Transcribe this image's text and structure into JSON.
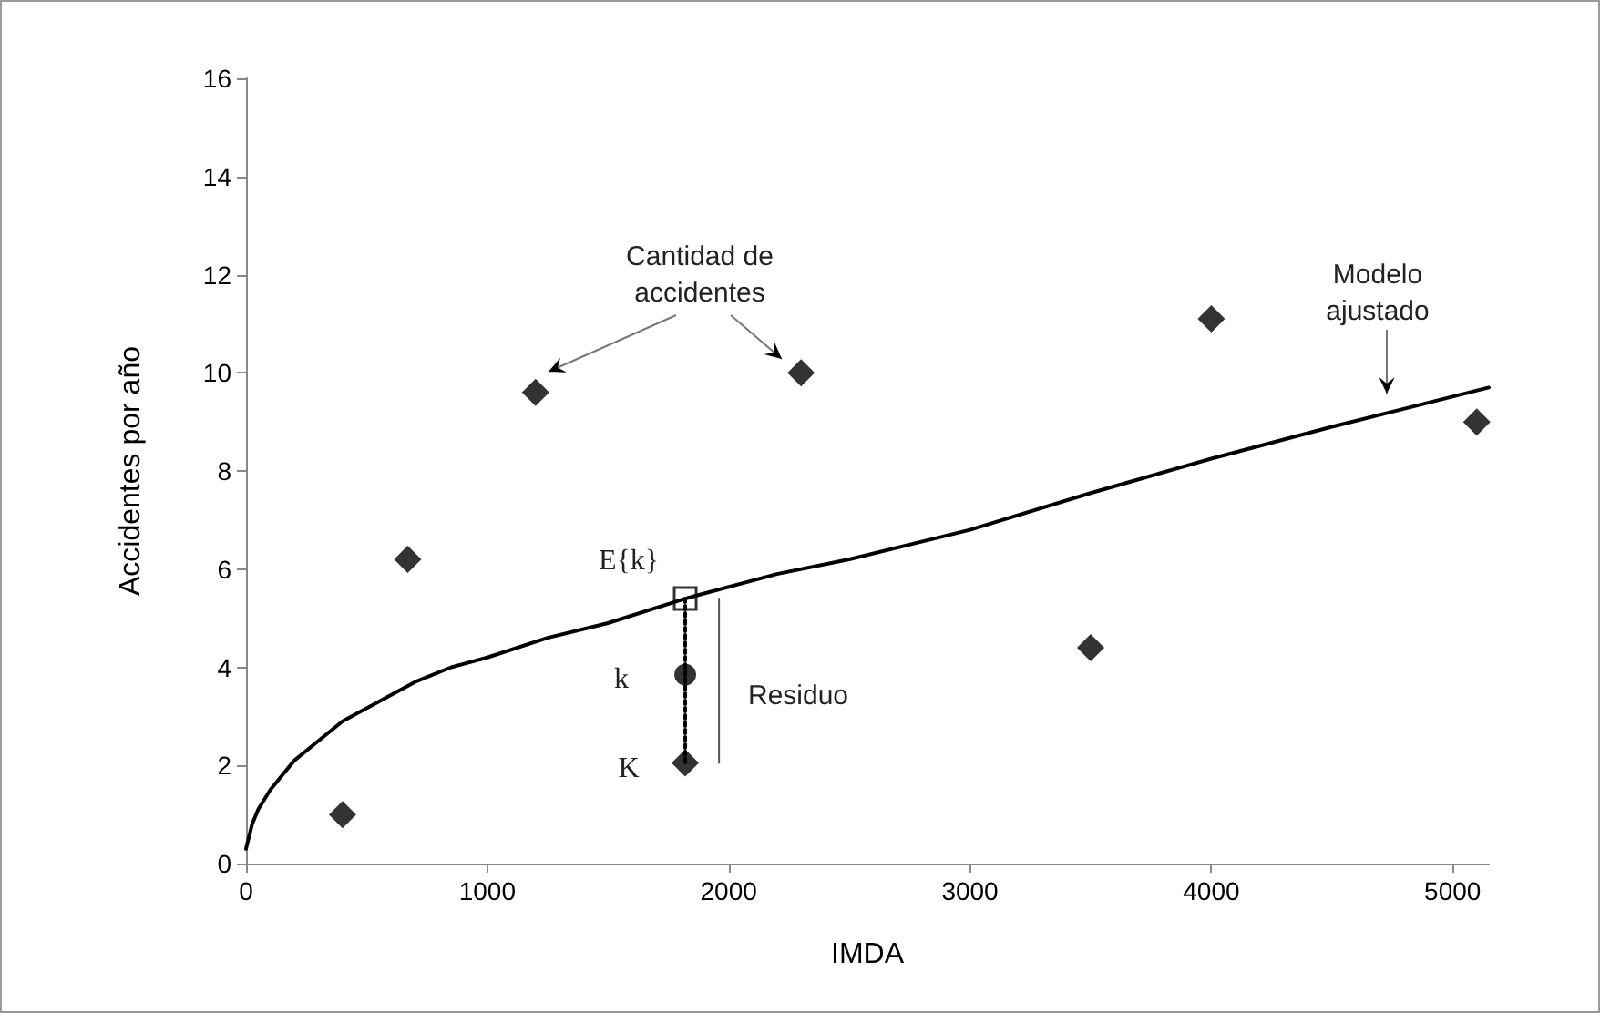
{
  "chart_data": {
    "type": "scatter",
    "xlabel": "IMDA",
    "ylabel": "Accidentes por año",
    "xlim": [
      0,
      5150
    ],
    "xticks": [
      0,
      1000,
      2000,
      3000,
      4000,
      5000
    ],
    "ylim": [
      0,
      16
    ],
    "yticks": [
      0,
      2,
      4,
      6,
      8,
      10,
      12,
      14,
      16
    ],
    "grid": false,
    "series": [
      {
        "type": "line",
        "color": "#000000",
        "marker": "none",
        "line_style": "solid",
        "x": [
          0,
          25,
          50,
          100,
          150,
          200,
          300,
          400,
          550,
          700,
          850,
          1000,
          1250,
          1500,
          1820,
          2200,
          2500,
          3000,
          3500,
          4000,
          4500,
          5150
        ],
        "values": [
          0.3,
          0.8,
          1.1,
          1.5,
          1.8,
          2.1,
          2.5,
          2.9,
          3.3,
          3.7,
          4.0,
          4.2,
          4.6,
          4.9,
          5.4,
          5.9,
          6.2,
          6.8,
          7.55,
          8.25,
          8.9,
          9.7
        ]
      },
      {
        "type": "line",
        "color": "#000000",
        "marker": "none",
        "line_style": "dotted",
        "x": [
          1820,
          1820
        ],
        "values": [
          5.4,
          2.05
        ]
      },
      {
        "type": "line",
        "color": "#555555",
        "marker": "none",
        "line_style": "solid",
        "x": [
          1960,
          1960
        ],
        "values": [
          5.4,
          2.05
        ]
      },
      {
        "color": "#000000",
        "marker": "diamond",
        "x": [
          400,
          670,
          1200,
          1820,
          2300,
          3500,
          4000,
          5100
        ],
        "values": [
          1.0,
          6.2,
          9.6,
          2.05,
          10.0,
          4.4,
          11.1,
          9.0
        ]
      },
      {
        "color": "#000000",
        "marker": "circle",
        "x": [
          1820
        ],
        "values": [
          3.85
        ]
      },
      {
        "color": "#000000",
        "marker": "square",
        "x": [
          1820
        ],
        "values": [
          5.4
        ]
      }
    ],
    "annotations": [
      "Cantidad de accidentes",
      "Modelo ajustado",
      "E{k}",
      "k",
      "K",
      "Residuo"
    ]
  }
}
